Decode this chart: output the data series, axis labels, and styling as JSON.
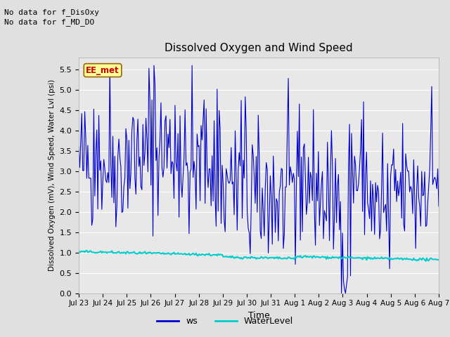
{
  "title": "Dissolved Oxygen and Wind Speed",
  "ylabel": "Dissolved Oxygen (mV), Wind Speed, Water Lvl (psi)",
  "xlabel": "Time",
  "text_no_data_1": "No data for f_DisOxy",
  "text_no_data_2": "No data for f_MD_DO",
  "annotation_label": "EE_met",
  "annotation_color": "#cc0000",
  "annotation_bg": "#ffff99",
  "annotation_border": "#996600",
  "ylim": [
    0.0,
    5.8
  ],
  "yticks": [
    0.0,
    0.5,
    1.0,
    1.5,
    2.0,
    2.5,
    3.0,
    3.5,
    4.0,
    4.5,
    5.0,
    5.5
  ],
  "bg_color": "#e0e0e0",
  "plot_bg": "#e8e8e8",
  "ws_color": "#0000cc",
  "wl_color": "#00cccc",
  "ws_linewidth": 0.8,
  "wl_linewidth": 1.5,
  "legend_ws_label": "ws",
  "legend_wl_label": "WaterLevel",
  "n_days": 15,
  "seed": 42,
  "date_labels": [
    "Jul 23",
    "Jul 24",
    "Jul 25",
    "Jul 26",
    "Jul 27",
    "Jul 28",
    "Jul 29",
    "Jul 30",
    "Jul 31",
    "Aug 1",
    "Aug 2",
    "Aug 3",
    "Aug 4",
    "Aug 5",
    "Aug 6",
    "Aug 7"
  ]
}
